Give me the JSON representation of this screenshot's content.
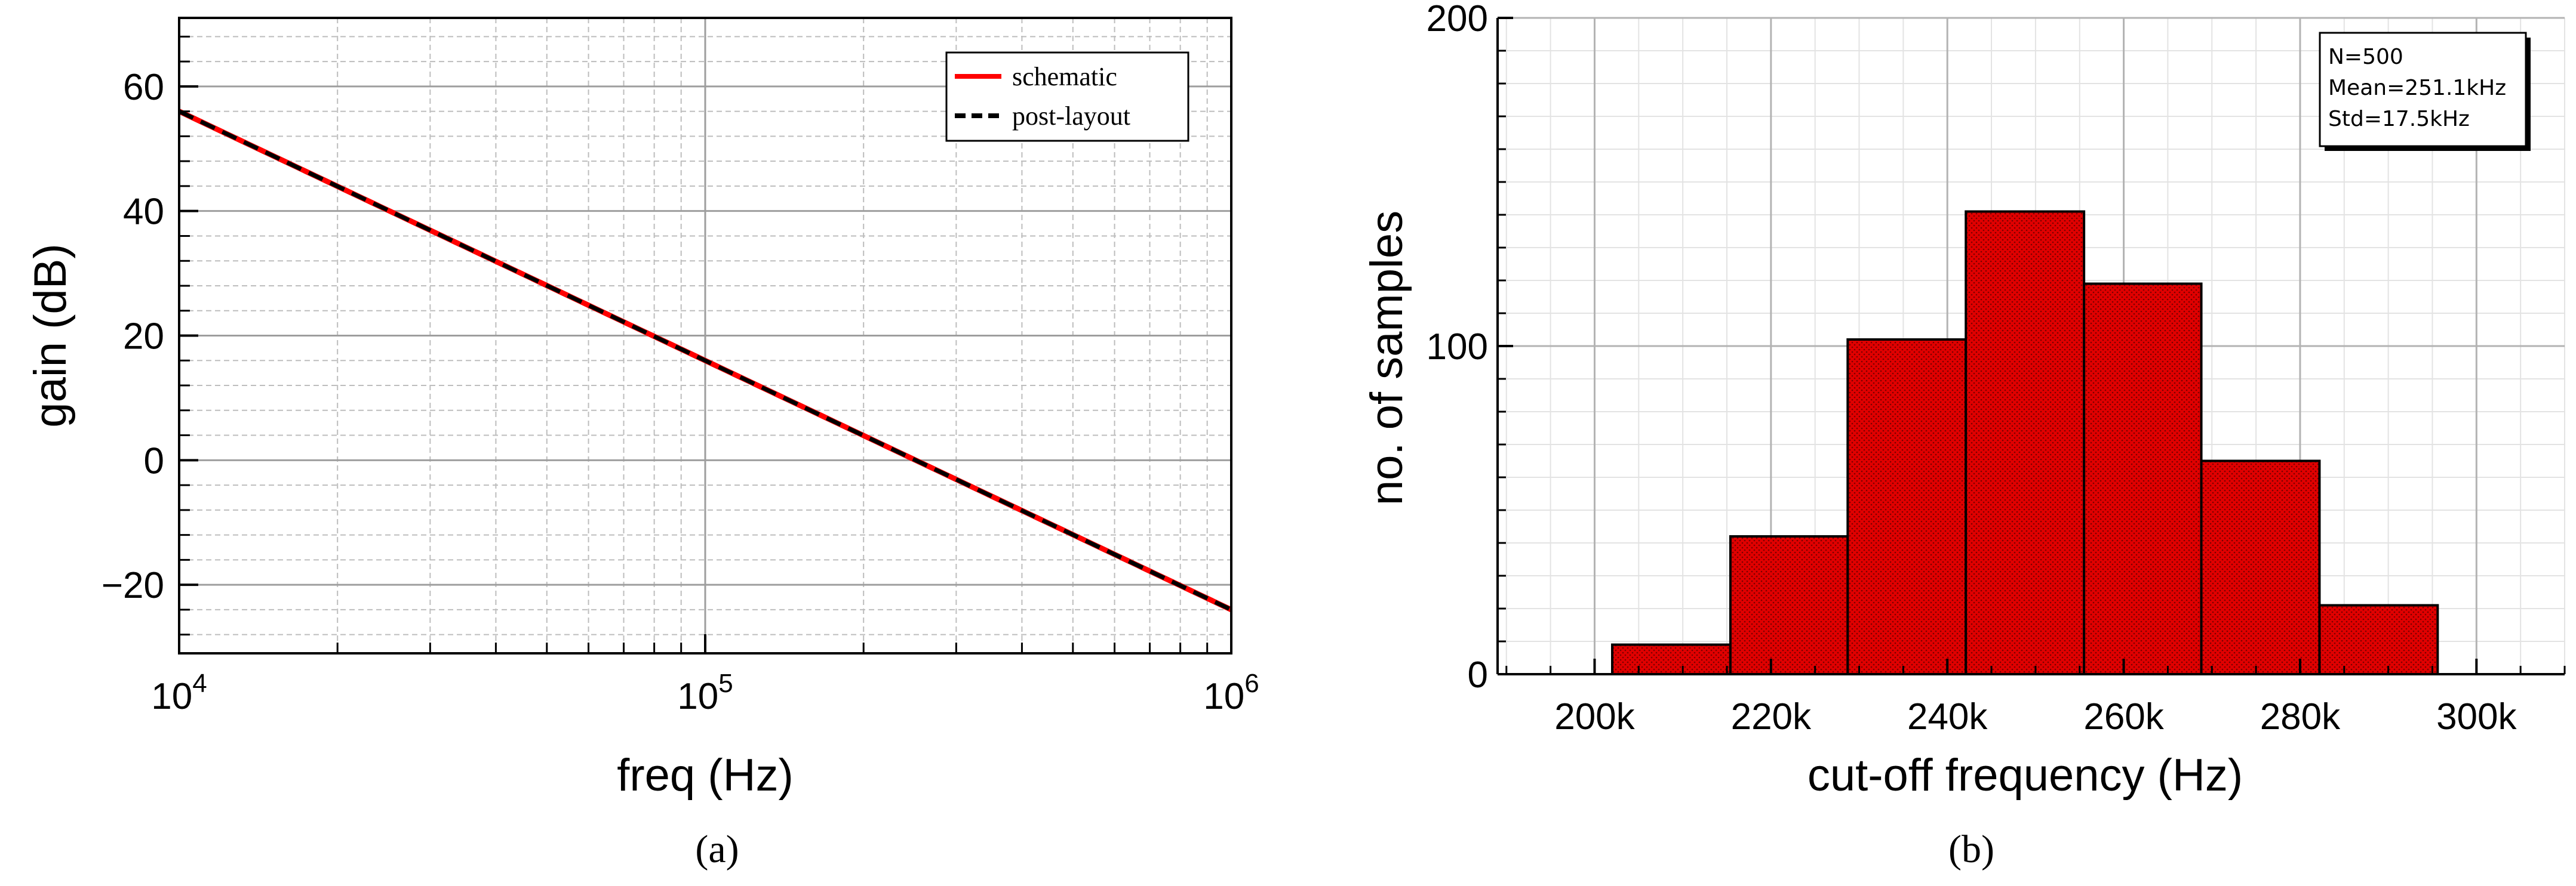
{
  "chart_data": [
    {
      "type": "line",
      "panel_label": "(a)",
      "xlabel": "freq (Hz)",
      "ylabel": "gain (dB)",
      "xscale": "log",
      "xlim": [
        10000,
        1000000
      ],
      "ylim": [
        -31,
        71
      ],
      "x_ticks": [
        {
          "value": 10000,
          "base": "10",
          "exp": "4"
        },
        {
          "value": 100000,
          "base": "10",
          "exp": "5"
        },
        {
          "value": 1000000,
          "base": "10",
          "exp": "6"
        }
      ],
      "y_ticks": [
        {
          "value": -20,
          "label": "−20"
        },
        {
          "value": 0,
          "label": "0"
        },
        {
          "value": 20,
          "label": "20"
        },
        {
          "value": 40,
          "label": "40"
        },
        {
          "value": 60,
          "label": "60"
        }
      ],
      "grid": true,
      "legend_position": "top-right",
      "series": [
        {
          "name": "schematic",
          "color": "#ff0000",
          "dash": "solid",
          "x": [
            10000,
            100000,
            1000000
          ],
          "y": [
            56,
            16,
            -24
          ]
        },
        {
          "name": "post-layout",
          "color": "#000000",
          "dash": "dashed",
          "x": [
            10000,
            100000,
            1000000
          ],
          "y": [
            56,
            16,
            -24
          ]
        }
      ]
    },
    {
      "type": "bar",
      "panel_label": "(b)",
      "xlabel": "cut-off frequency (Hz)",
      "ylabel": "no. of samples",
      "xlim": [
        189000,
        310000
      ],
      "ylim": [
        0,
        200
      ],
      "x_ticks": [
        {
          "value": 200000,
          "label": "200k"
        },
        {
          "value": 220000,
          "label": "220k"
        },
        {
          "value": 240000,
          "label": "240k"
        },
        {
          "value": 260000,
          "label": "260k"
        },
        {
          "value": 280000,
          "label": "280k"
        },
        {
          "value": 300000,
          "label": "300k"
        }
      ],
      "y_ticks": [
        {
          "value": 0,
          "label": "0"
        },
        {
          "value": 100,
          "label": "100"
        },
        {
          "value": 200,
          "label": "200"
        }
      ],
      "grid": true,
      "bar_color": "#e00000",
      "bins": [
        {
          "start": 202000,
          "end": 215400,
          "count": 9
        },
        {
          "start": 215400,
          "end": 228700,
          "count": 42
        },
        {
          "start": 228700,
          "end": 242100,
          "count": 102
        },
        {
          "start": 242100,
          "end": 255500,
          "count": 141
        },
        {
          "start": 255500,
          "end": 268800,
          "count": 119
        },
        {
          "start": 268800,
          "end": 282200,
          "count": 65
        },
        {
          "start": 282200,
          "end": 295600,
          "count": 21
        }
      ],
      "stats_lines": [
        "N=500",
        "Mean=251.1kHz",
        "Std=17.5kHz"
      ]
    }
  ]
}
